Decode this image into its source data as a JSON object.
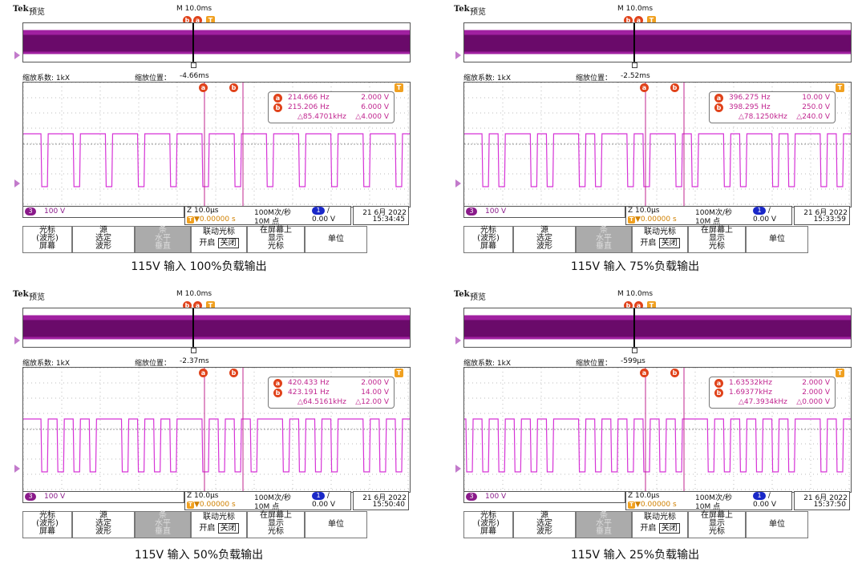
{
  "colors": {
    "trace": "#d633d6",
    "cursor": "#c0258f",
    "tag": "#e0421a",
    "trigger": "#f0a020",
    "ch_blue": "#1a28c8"
  },
  "common": {
    "brand": "Tek",
    "mode": "预览",
    "timebase": "M 10.0ms",
    "zoom_factor": "缩放系数: 1kX",
    "zoom_pos_label": "缩放位置：",
    "ch3_label": "3",
    "ch3_scale": "100 V",
    "zoom_time": "Z 10.0μs",
    "trig_offset": "▼0.00000 s",
    "sample_rate": "100M次/秒",
    "record_len": "10M 点",
    "trig_ch": "1",
    "trig_slope": "∕",
    "trig_level": "0.00 V",
    "date": "21 6月 2022",
    "menu": {
      "m1": [
        "光标",
        "(波形)",
        "屏幕"
      ],
      "m2": [
        "源",
        "选定",
        "波形"
      ],
      "m3": [
        "条",
        "水平",
        "垂直"
      ],
      "m4_title": "联动光标",
      "m4_on": "开启",
      "m4_off": "关闭",
      "m5": [
        "在屏幕上",
        "显示",
        "光标"
      ],
      "m6": "单位"
    }
  },
  "panels": [
    {
      "caption": "115V 输入  100%负载输出",
      "zoom_pos": "-4.66ms",
      "time": "15:34:45",
      "a_freq": "214.666 Hz",
      "a_val": "2.000 V",
      "b_freq": "215.206 Hz",
      "b_val": "6.000 V",
      "d_freq": "△85.4701kHz",
      "d_val": "△4.000 V",
      "pattern": [
        1,
        0,
        1,
        0,
        1,
        0,
        1,
        0,
        1,
        0,
        1,
        0,
        1,
        0,
        1,
        0,
        1,
        0,
        1,
        0,
        1,
        0,
        1,
        0
      ]
    },
    {
      "caption": "115V 输入  75%负载输出",
      "zoom_pos": "-2.52ms",
      "time": "15:33:59",
      "a_freq": "396.275 Hz",
      "a_val": "10.00 V",
      "b_freq": "398.295 Hz",
      "b_val": "250.0 V",
      "d_freq": "△78.1250kHz",
      "d_val": "△240.0 V",
      "pattern": [
        1,
        0,
        0,
        1,
        0,
        0,
        1,
        0,
        0,
        1,
        0,
        0,
        1,
        0,
        0,
        1,
        0,
        0,
        1,
        0,
        0,
        1,
        0,
        0
      ]
    },
    {
      "caption": "115V 输入   50%负载输出",
      "zoom_pos": "-2.37ms",
      "time": "15:50:40",
      "a_freq": "420.433 Hz",
      "a_val": "2.000 V",
      "b_freq": "423.191 Hz",
      "b_val": "14.00 V",
      "d_freq": "△64.5161kHz",
      "d_val": "△12.00 V",
      "pattern": [
        1,
        0,
        0,
        0,
        0,
        1,
        0,
        0,
        0,
        0,
        1,
        0,
        0,
        0,
        0,
        1,
        0,
        0,
        0,
        0,
        1,
        0,
        0,
        0
      ]
    },
    {
      "caption": "115V 输入   25%负载输出",
      "zoom_pos": "-599μs",
      "time": "15:37:50",
      "a_freq": "1.63532kHz",
      "a_val": "2.000 V",
      "b_freq": "1.69377kHz",
      "b_val": "2.000 V",
      "d_freq": "△47.3934kHz",
      "d_val": "△0.000 V",
      "pattern": [
        0,
        0,
        0,
        0,
        0,
        0,
        1,
        0,
        0,
        0,
        0,
        0,
        0,
        0,
        1,
        0,
        0,
        0,
        0,
        0,
        0,
        1,
        0,
        0
      ]
    }
  ]
}
